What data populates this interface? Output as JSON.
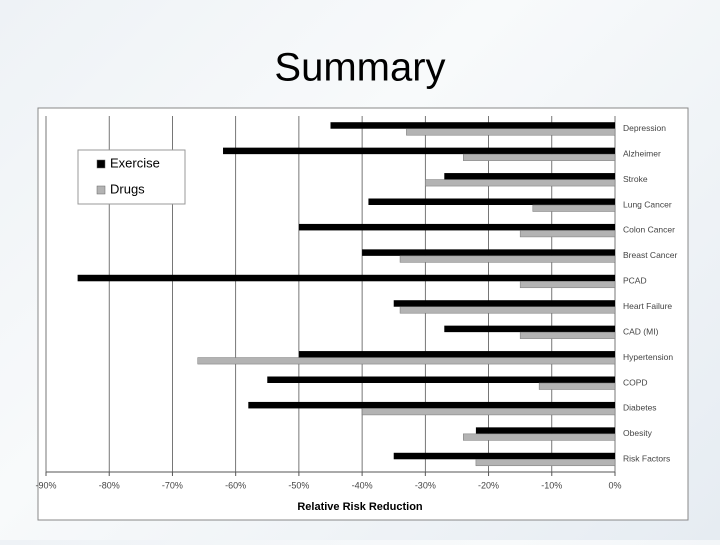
{
  "chart_data": {
    "type": "bar",
    "orientation": "horizontal",
    "title": "Summary",
    "x_label": "Relative Risk Reduction",
    "categories": [
      "Depression",
      "Alzheimer",
      "Stroke",
      "Lung Cancer",
      "Colon Cancer",
      "Breast Cancer",
      "PCAD",
      "Heart Failure",
      "CAD (MI)",
      "Hypertension",
      "COPD",
      "Diabetes",
      "Obesity",
      "Risk Factors"
    ],
    "series": [
      {
        "name": "Exercise",
        "color": "#000000",
        "values": [
          -45,
          -62,
          -27,
          -39,
          -50,
          -40,
          -85,
          -35,
          -27,
          -50,
          -55,
          -58,
          -22,
          -35
        ]
      },
      {
        "name": "Drugs",
        "color": "#b3b3b3",
        "values": [
          -33,
          -24,
          -30,
          -13,
          -15,
          -34,
          -15,
          -34,
          -15,
          -66,
          -12,
          -40,
          -24,
          -22
        ]
      }
    ],
    "xlim": [
      -90,
      0
    ],
    "xticks": [
      {
        "value": -90,
        "label": "-90%"
      },
      {
        "value": -80,
        "label": "-80%"
      },
      {
        "value": -70,
        "label": "-70%"
      },
      {
        "value": -60,
        "label": "-60%"
      },
      {
        "value": -50,
        "label": "-50%"
      },
      {
        "value": -40,
        "label": "-40%"
      },
      {
        "value": -30,
        "label": "-30%"
      },
      {
        "value": -20,
        "label": "-20%"
      },
      {
        "value": -10,
        "label": "-10%"
      },
      {
        "value": 0,
        "label": "0%"
      }
    ],
    "grid": true,
    "legend": "top-left"
  }
}
